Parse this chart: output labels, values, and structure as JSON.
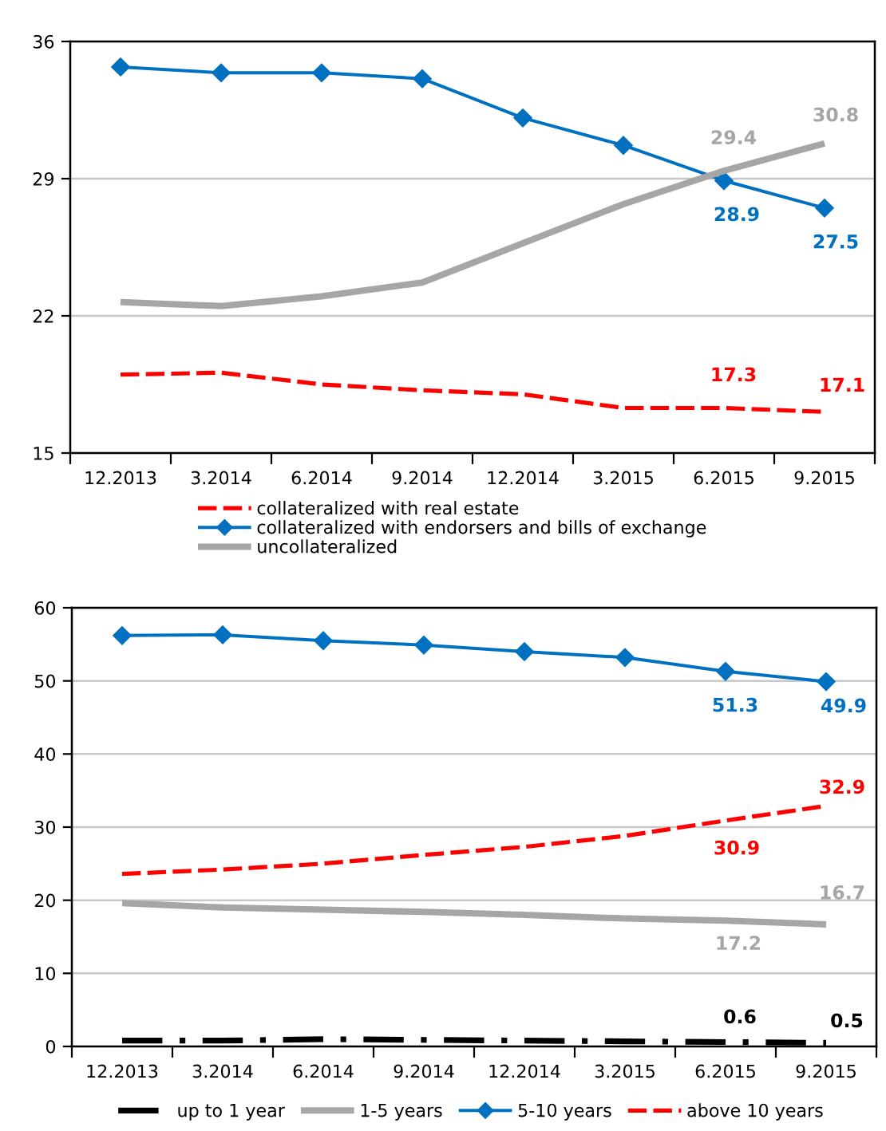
{
  "chart_data": [
    {
      "type": "line",
      "categories": [
        "12.2013",
        "3.2014",
        "6.2014",
        "9.2014",
        "12.2014",
        "3.2015",
        "6.2015",
        "9.2015"
      ],
      "ylim": [
        15,
        36
      ],
      "yticks": [
        15,
        22,
        29,
        36
      ],
      "grid": "y",
      "legend": "bottom",
      "series": [
        {
          "name": "collateralized with real estate",
          "color": "#ff0000",
          "line_style": "dashed",
          "marker": "none",
          "values": [
            19.0,
            19.1,
            18.5,
            18.2,
            18.0,
            17.3,
            17.3,
            17.1
          ],
          "value_labels": [
            null,
            null,
            null,
            null,
            null,
            null,
            "17.3",
            "17.1"
          ]
        },
        {
          "name": "collateralized with endorsers and bills of exchange",
          "color": "#0070c0",
          "line_style": "solid",
          "marker": "diamond",
          "values": [
            34.7,
            34.4,
            34.4,
            34.1,
            32.1,
            30.7,
            28.9,
            27.5
          ],
          "value_labels": [
            null,
            null,
            null,
            null,
            null,
            null,
            "28.9",
            "27.5"
          ]
        },
        {
          "name": "uncollateralized",
          "color": "#a6a6a6",
          "line_style": "solid",
          "marker": "none",
          "values": [
            22.7,
            22.5,
            23.0,
            23.7,
            25.7,
            27.7,
            29.4,
            30.8
          ],
          "value_labels": [
            null,
            null,
            null,
            null,
            null,
            null,
            "29.4",
            "30.8"
          ]
        }
      ]
    },
    {
      "type": "line",
      "categories": [
        "12.2013",
        "3.2014",
        "6.2014",
        "9.2014",
        "12.2014",
        "3.2015",
        "6.2015",
        "9.2015"
      ],
      "ylim": [
        0,
        60
      ],
      "yticks": [
        0,
        10,
        20,
        30,
        40,
        50,
        60
      ],
      "grid": "y",
      "legend": "bottom",
      "series": [
        {
          "name": "up to 1 year",
          "color": "#000000",
          "line_style": "dashdot",
          "marker": "none",
          "values": [
            0.8,
            0.8,
            1.0,
            0.9,
            0.8,
            0.7,
            0.6,
            0.5
          ],
          "value_labels": [
            null,
            null,
            null,
            null,
            null,
            null,
            "0.6",
            "0.5"
          ]
        },
        {
          "name": "1-5 years",
          "color": "#a6a6a6",
          "line_style": "solid",
          "marker": "none",
          "values": [
            19.6,
            19.0,
            18.7,
            18.4,
            18.0,
            17.5,
            17.2,
            16.7
          ],
          "value_labels": [
            null,
            null,
            null,
            null,
            null,
            null,
            "17.2",
            "16.7"
          ]
        },
        {
          "name": "5-10 years",
          "color": "#0070c0",
          "line_style": "solid",
          "marker": "diamond",
          "values": [
            56.2,
            56.3,
            55.5,
            54.9,
            54.0,
            53.2,
            51.3,
            49.9
          ],
          "value_labels": [
            null,
            null,
            null,
            null,
            null,
            null,
            "51.3",
            "49.9"
          ]
        },
        {
          "name": "above 10 years",
          "color": "#ff0000",
          "line_style": "dashed",
          "marker": "none",
          "values": [
            23.6,
            24.2,
            25.0,
            26.2,
            27.3,
            28.8,
            30.9,
            32.9
          ],
          "value_labels": [
            null,
            null,
            null,
            null,
            null,
            null,
            "30.9",
            "32.9"
          ]
        }
      ]
    }
  ]
}
